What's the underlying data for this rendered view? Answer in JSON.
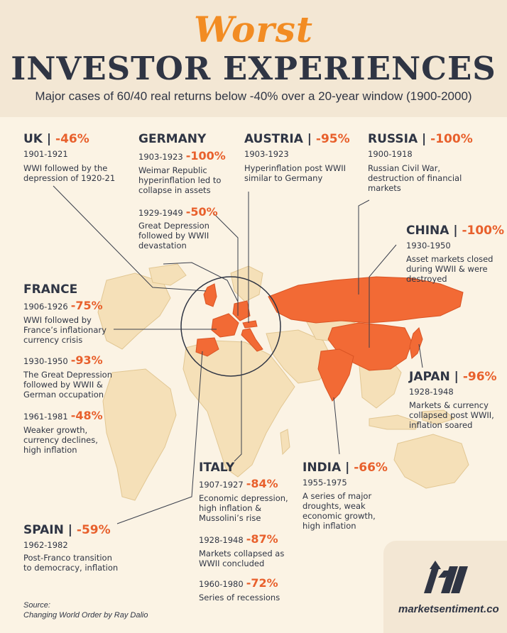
{
  "header": {
    "title_top": "Worst",
    "title_main": "INVESTOR EXPERIENCES",
    "subtitle": "Major cases of 60/40 real returns below -40% over a 20-year window (1900-2000)"
  },
  "colors": {
    "accent": "#f28c23",
    "highlight": "#e8602c",
    "land": "#f5e0b8",
    "dark": "#2f3544"
  },
  "countries": {
    "uk": {
      "name": "UK |",
      "pct": " -46%",
      "periods": [
        {
          "years": "1901-1921",
          "desc": [
            "WWI followed by the",
            "depression of 1920-21"
          ]
        }
      ]
    },
    "germany": {
      "name": "GERMANY",
      "periods": [
        {
          "years": "1903-1923",
          "pct": "-100%",
          "desc": [
            "Weimar Republic",
            "hyperinflation led to",
            "collapse in assets"
          ]
        },
        {
          "years": "1929-1949",
          "pct": "-50%",
          "desc": [
            "Great Depression",
            "followed by WWII",
            "devastation"
          ]
        }
      ]
    },
    "austria": {
      "name": "AUSTRIA |",
      "pct": " -95%",
      "periods": [
        {
          "years": "1903-1923",
          "desc": [
            "Hyperinflation post WWII",
            "similar to Germany"
          ]
        }
      ]
    },
    "russia": {
      "name": "RUSSIA |",
      "pct": " -100%",
      "periods": [
        {
          "years": "1900-1918",
          "desc": [
            "Russian Civil War,",
            "destruction of financial",
            "markets"
          ]
        }
      ]
    },
    "china": {
      "name": "CHINA |",
      "pct": " -100%",
      "periods": [
        {
          "years": "1930-1950",
          "desc": [
            "Asset markets closed",
            "during WWII & were",
            "destroyed"
          ]
        }
      ]
    },
    "france": {
      "name": "FRANCE",
      "periods": [
        {
          "years": "1906-1926",
          "pct": "-75%",
          "desc": [
            "WWI followed by",
            "France’s inflationary",
            "currency crisis"
          ]
        },
        {
          "years": "1930-1950",
          "pct": "-93%",
          "desc": [
            "The Great Depression",
            "followed by WWII &",
            "German occupation"
          ]
        },
        {
          "years": "1961-1981",
          "pct": "-48%",
          "desc": [
            "Weaker growth,",
            "currency declines,",
            "high inflation"
          ]
        }
      ]
    },
    "japan": {
      "name": "JAPAN |",
      "pct": " -96%",
      "periods": [
        {
          "years": "1928-1948",
          "desc": [
            "Markets & currency",
            "collapsed post WWII,",
            "inflation soared"
          ]
        }
      ]
    },
    "italy": {
      "name": "ITALY",
      "periods": [
        {
          "years": "1907-1927",
          "pct": "-84%",
          "desc": [
            "Economic depression,",
            "high inflation &",
            "Mussolini’s rise"
          ]
        },
        {
          "years": "1928-1948",
          "pct": "-87%",
          "desc": [
            "Markets collapsed as",
            "WWII concluded"
          ]
        },
        {
          "years": "1960-1980",
          "pct": "-72%",
          "desc": [
            "Series of recessions"
          ]
        }
      ]
    },
    "india": {
      "name": "INDIA |",
      "pct": " -66%",
      "periods": [
        {
          "years": "1955-1975",
          "desc": [
            "A series of major",
            "droughts, weak",
            "economic growth,",
            "high inflation"
          ]
        }
      ]
    },
    "spain": {
      "name": "SPAIN |",
      "pct": " -59%",
      "periods": [
        {
          "years": "1962-1982",
          "desc": [
            "Post-Franco transition",
            "to democracy, inflation"
          ]
        }
      ]
    }
  },
  "source": {
    "label": "Source:",
    "text": "Changing World Order by Ray Dalio"
  },
  "brand": {
    "name": "marketsentiment.co"
  }
}
